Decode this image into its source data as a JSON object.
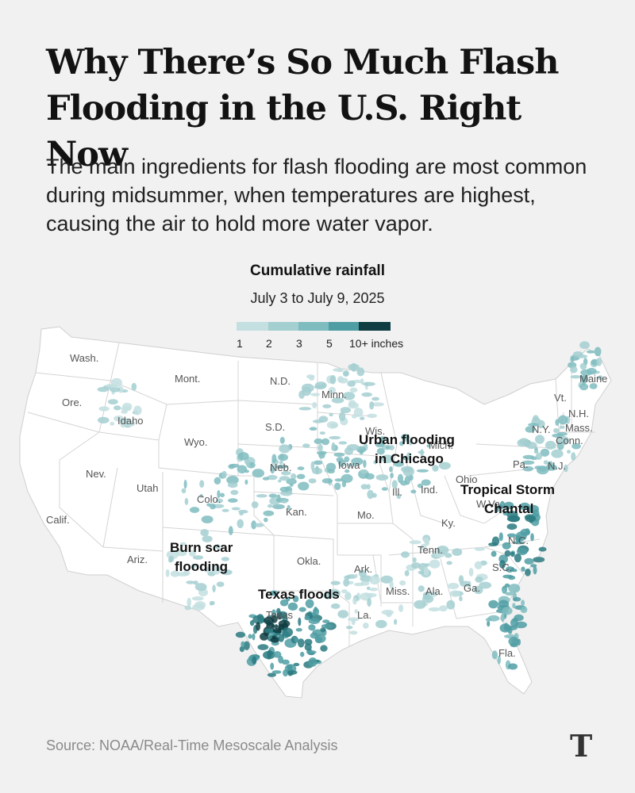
{
  "headline": "Why There’s So Much Flash Flooding in the U.S. Right Now",
  "dek": "The main ingredients for flash flooding are most common during midsummer, when temperatures are highest, causing the air to hold more water vapor.",
  "map": {
    "title": "Cumulative rainfall",
    "subtitle": "July 3 to July 9, 2025",
    "legend": {
      "ticks": [
        "1",
        "2",
        "3",
        "5",
        "10+ inches"
      ],
      "colors": [
        "#c3dfe0",
        "#a4cfd1",
        "#7fbcbf",
        "#4f9ea3",
        "#2a7a80",
        "#0f3d42"
      ]
    },
    "states": [
      "Wash.",
      "Ore.",
      "Calif.",
      "Idaho",
      "Nev.",
      "Mont.",
      "Wyo.",
      "Utah",
      "Ariz.",
      "Colo.",
      "N.D.",
      "S.D.",
      "Neb.",
      "Kan.",
      "Okla.",
      "Texas",
      "Minn.",
      "Iowa",
      "Mo.",
      "Ark.",
      "La.",
      "Wis.",
      "Ill.",
      "Mich.",
      "Ind.",
      "Ohio",
      "Ky.",
      "Tenn.",
      "Miss.",
      "Ala.",
      "Ga.",
      "Fla.",
      "S.C.",
      "N.C.",
      "W.Va.",
      "Pa.",
      "N.Y.",
      "Vt.",
      "N.H.",
      "Maine",
      "Mass.",
      "Conn.",
      "N.J."
    ],
    "annotations": {
      "chicago": [
        "Urban flooding",
        "in Chicago"
      ],
      "chantal": [
        "Tropical Storm",
        "Chantal"
      ],
      "burn_scar": [
        "Burn scar",
        "flooding"
      ],
      "texas": "Texas floods"
    }
  },
  "source": "Source: NOAA/Real-Time Mesoscale Analysis",
  "logo": "T"
}
